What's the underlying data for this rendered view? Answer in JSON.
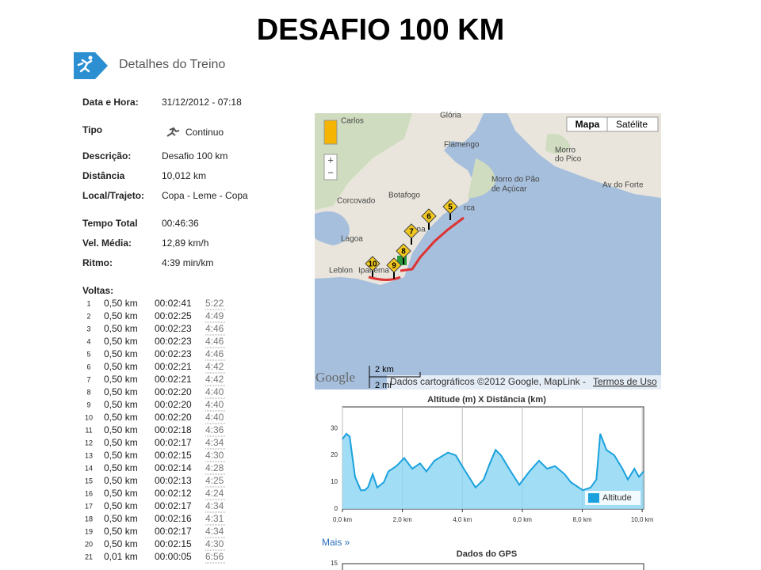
{
  "slide_title": "DESAFIO 100 KM",
  "header": {
    "title": "Detalhes do Treino"
  },
  "details": [
    {
      "label": "Data e Hora:",
      "value": "31/12/2012 - 07:18"
    },
    {
      "label": "Tipo",
      "value": "Continuo"
    },
    {
      "label": "Descrição:",
      "value": "Desafio 100 km"
    },
    {
      "label": "Distância",
      "value": "10,012 km"
    },
    {
      "label": "Local/Trajeto:",
      "value": "Copa - Leme - Copa"
    },
    {
      "label": "Tempo Total",
      "value": "00:46:36"
    },
    {
      "label": "Vel. Média:",
      "value": "12,89 km/h"
    },
    {
      "label": "Ritmo:",
      "value": "4:39 min/km"
    }
  ],
  "laps": {
    "label": "Voltas:",
    "rows": [
      [
        "1",
        "0,50 km",
        "00:02:41",
        "5:22"
      ],
      [
        "2",
        "0,50 km",
        "00:02:25",
        "4:49"
      ],
      [
        "3",
        "0,50 km",
        "00:02:23",
        "4:46"
      ],
      [
        "4",
        "0,50 km",
        "00:02:23",
        "4:46"
      ],
      [
        "5",
        "0,50 km",
        "00:02:23",
        "4:46"
      ],
      [
        "6",
        "0,50 km",
        "00:02:21",
        "4:42"
      ],
      [
        "7",
        "0,50 km",
        "00:02:21",
        "4:42"
      ],
      [
        "8",
        "0,50 km",
        "00:02:20",
        "4:40"
      ],
      [
        "9",
        "0,50 km",
        "00:02:20",
        "4:40"
      ],
      [
        "10",
        "0,50 km",
        "00:02:20",
        "4:40"
      ],
      [
        "11",
        "0,50 km",
        "00:02:18",
        "4:36"
      ],
      [
        "12",
        "0,50 km",
        "00:02:17",
        "4:34"
      ],
      [
        "13",
        "0,50 km",
        "00:02:15",
        "4:30"
      ],
      [
        "14",
        "0,50 km",
        "00:02:14",
        "4:28"
      ],
      [
        "15",
        "0,50 km",
        "00:02:13",
        "4:25"
      ],
      [
        "16",
        "0,50 km",
        "00:02:12",
        "4:24"
      ],
      [
        "17",
        "0,50 km",
        "00:02:17",
        "4:34"
      ],
      [
        "18",
        "0,50 km",
        "00:02:16",
        "4:31"
      ],
      [
        "19",
        "0,50 km",
        "00:02:17",
        "4:34"
      ],
      [
        "20",
        "0,50 km",
        "00:02:15",
        "4:30"
      ],
      [
        "21",
        "0,01 km",
        "00:00:05",
        "6:56"
      ]
    ]
  },
  "map": {
    "labels": [
      "Carlos",
      "Glória",
      "Flamengo",
      "Botafogo",
      "Corcovado",
      "Lagoa",
      "Leblon",
      "Ipanema",
      "Morro do Pão",
      "de Açúcar",
      "Morro",
      "do Pico",
      "Av do Forte",
      "rca",
      "ana"
    ],
    "buttons": [
      "Mapa",
      "Satélite"
    ],
    "markers": [
      "5",
      "6",
      "7",
      "8",
      "9",
      "10"
    ],
    "scale": [
      "2 km",
      "2 mi"
    ],
    "logo": "Google",
    "attribution": "Dados cartográficos ©2012 Google, MapLink -",
    "terms": "Termos de Uso"
  },
  "more_link": "Mais »",
  "chart_data": [
    {
      "type": "area",
      "title": "Altitude (m) X Distância (km)",
      "x": [
        0,
        0.13,
        0.24,
        0.42,
        0.61,
        0.74,
        0.85,
        1.01,
        1.16,
        1.38,
        1.53,
        1.8,
        2.06,
        2.33,
        2.59,
        2.8,
        3.07,
        3.52,
        3.78,
        4.05,
        4.44,
        4.71,
        4.92,
        5.11,
        5.29,
        5.56,
        5.9,
        6.24,
        6.56,
        6.83,
        7.09,
        7.41,
        7.62,
        8.02,
        8.28,
        8.47,
        8.6,
        8.81,
        9.07,
        9.34,
        9.52,
        9.74,
        9.89,
        10.05
      ],
      "series": [
        {
          "name": "Altitude",
          "color": "#1ba1dd",
          "values": [
            26,
            28,
            27,
            12,
            7,
            7,
            8,
            13,
            8,
            10,
            14,
            16,
            19,
            15,
            17,
            14,
            18,
            21,
            20,
            15,
            8,
            11,
            17,
            22,
            20,
            15,
            9,
            14,
            18,
            15,
            16,
            13,
            10,
            7,
            8,
            11,
            28,
            22,
            20,
            15,
            11,
            15,
            12,
            14
          ]
        }
      ],
      "xlim": [
        0,
        10.05
      ],
      "ylim": [
        0,
        38
      ],
      "xticks": [
        {
          "value": 0,
          "label": "0,0 km"
        },
        {
          "value": 2,
          "label": "2,0 km"
        },
        {
          "value": 4,
          "label": "4,0 km"
        },
        {
          "value": 6,
          "label": "6,0 km"
        },
        {
          "value": 8,
          "label": "8,0 km"
        },
        {
          "value": 10,
          "label": "10,0 km"
        }
      ],
      "yticks": [
        0,
        10,
        20,
        30
      ],
      "grid": "x",
      "legend": "bottom-right"
    },
    {
      "type": "line",
      "title": "Dados do GPS",
      "ylim": [
        0,
        15
      ],
      "yticks": [
        15
      ]
    }
  ]
}
